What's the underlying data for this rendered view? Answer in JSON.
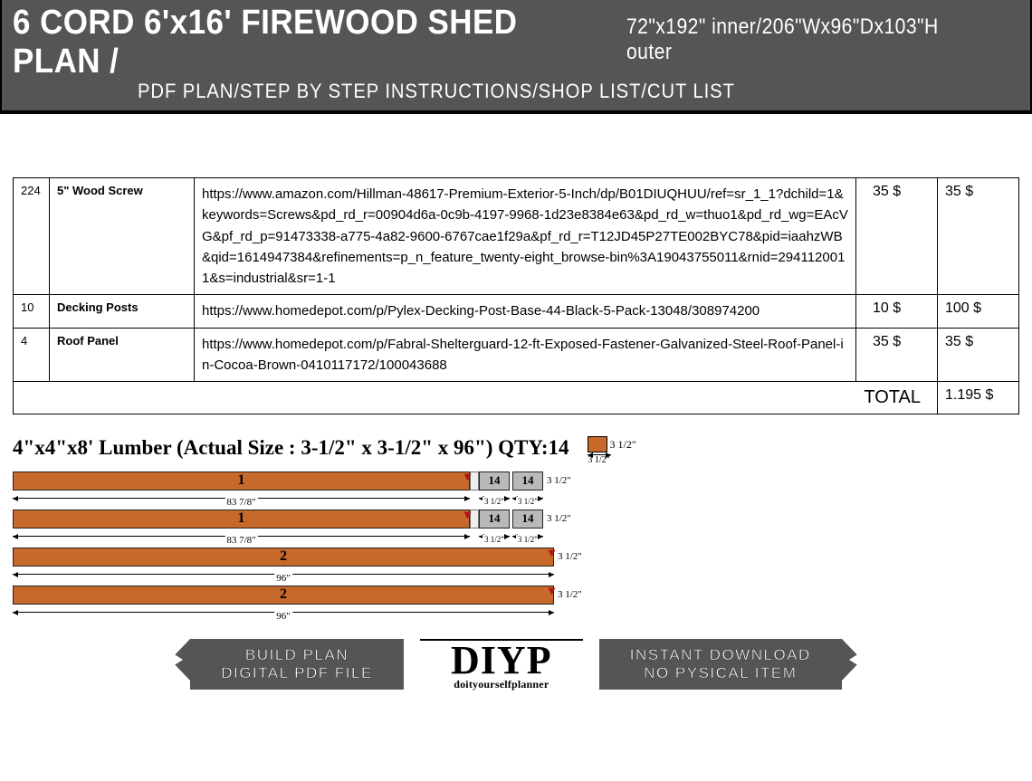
{
  "header": {
    "title_main": "6 CORD 6'x16' FIREWOOD SHED PLAN /",
    "title_sub": "72\"x192\" inner/206\"Wx96\"Dx103\"H outer",
    "line2": "PDF PLAN/STEP BY STEP INSTRUCTIONS/SHOP LIST/CUT LIST"
  },
  "table": {
    "rows": [
      {
        "qty": "224",
        "name": "5\" Wood Screw",
        "link": "https://www.amazon.com/Hillman-48617-Premium-Exterior-5-Inch/dp/B01DIUQHUU/ref=sr_1_1?dchild=1&keywords=Screws&pd_rd_r=00904d6a-0c9b-4197-9968-1d23e8384e63&pd_rd_w=thuo1&pd_rd_wg=EAcVG&pf_rd_p=91473338-a775-4a82-9600-6767cae1f29a&pf_rd_r=T12JD45P27TE002BYC78&pid=iaahzWB&qid=1614947384&refinements=p_n_feature_twenty-eight_browse-bin%3A19043755011&rnid=2941120011&s=industrial&sr=1-1",
        "unit_price": "35 $",
        "total_price": "35 $"
      },
      {
        "qty": "10",
        "name": "Decking Posts",
        "link": "https://www.homedepot.com/p/Pylex-Decking-Post-Base-44-Black-5-Pack-13048/308974200",
        "unit_price": "10 $",
        "total_price": "100 $"
      },
      {
        "qty": "4",
        "name": "Roof Panel",
        "link": "https://www.homedepot.com/p/Fabral-Shelterguard-12-ft-Exposed-Fastener-Galvanized-Steel-Roof-Panel-in-Cocoa-Brown-0410117172/100043688",
        "unit_price": "35 $",
        "total_price": "35 $"
      }
    ],
    "total_label": "TOTAL",
    "total_value": "1.195 $"
  },
  "lumber": {
    "title": "4\"x4\"x8' Lumber (Actual Size : 3-1/2\" x 3-1/2\" x 96\") QTY:14",
    "square_dim": "3 1/2\"",
    "square_under": "3 1/2\"",
    "bars": [
      {
        "main_label": "1",
        "main_width": 505,
        "grey_label": "14",
        "under_main": "83 7/8\"",
        "under_small": "3 1/2\"",
        "has_grey": true,
        "height_dim": "3 1/2\""
      },
      {
        "main_label": "1",
        "main_width": 505,
        "grey_label": "14",
        "under_main": "83 7/8\"",
        "under_small": "3 1/2\"",
        "has_grey": true,
        "height_dim": "3 1/2\""
      },
      {
        "main_label": "2",
        "main_width": 598,
        "under_main": "96\"",
        "has_grey": false,
        "height_dim": "3 1/2\""
      },
      {
        "main_label": "2",
        "main_width": 598,
        "under_main": "96\"",
        "has_grey": false,
        "height_dim": "3 1/2\""
      }
    ]
  },
  "footer": {
    "left_line1": "BUILD PLAN",
    "left_line2": "DIGITAL PDF FILE",
    "logo_main": "DIYP",
    "logo_sub": "doityourselfplanner",
    "right_line1": "INSTANT DOWNLOAD",
    "right_line2": "NO PYSICAL ITEM"
  },
  "colors": {
    "header_bg": "#555555",
    "bar_orange": "#c8692c",
    "grey_block": "#b9b9b9"
  }
}
